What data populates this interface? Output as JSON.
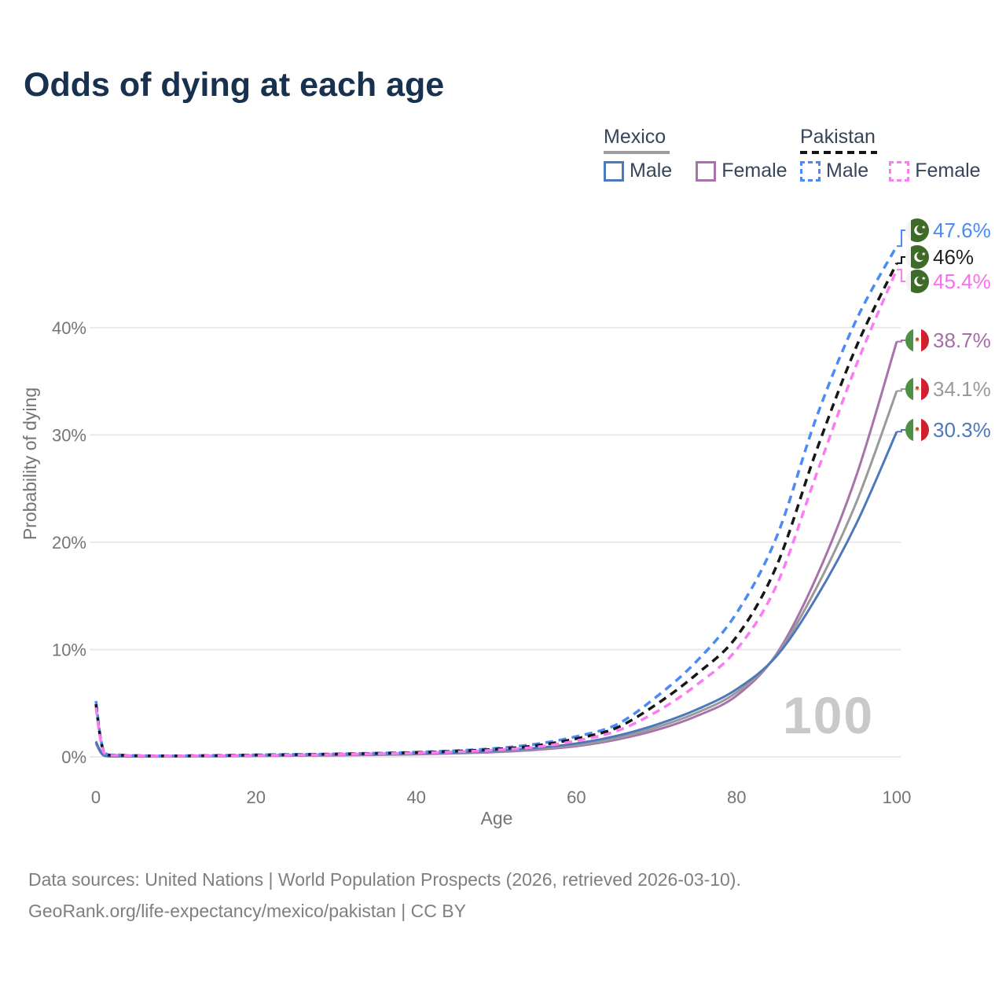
{
  "title": "Odds of dying at each age",
  "watermark_age": "100",
  "legend": {
    "groups": [
      {
        "label": "Mexico",
        "line_style": "solid",
        "underline_color": "#9e9e9e",
        "items": [
          {
            "label": "Male",
            "color": "#4d79bb"
          },
          {
            "label": "Female",
            "color": "#a872ab"
          }
        ]
      },
      {
        "label": "Pakistan",
        "line_style": "dashed",
        "underline_color": "#161616",
        "items": [
          {
            "label": "Male",
            "color": "#4b8bf4"
          },
          {
            "label": "Female",
            "color": "#fb7bf1"
          }
        ]
      }
    ]
  },
  "footer": {
    "line1": "Data sources: United Nations | World Population Prospects (2026, retrieved 2026-03-10).",
    "line2": "GeoRank.org/life-expectancy/mexico/pakistan | CC BY"
  },
  "chart_data": {
    "type": "line",
    "title": "Odds of dying at each age",
    "xlabel": "Age",
    "ylabel": "Probability of dying",
    "xlim": [
      0,
      100
    ],
    "ylim": [
      0,
      48
    ],
    "grid": "horizontal",
    "legend_position": "top-right",
    "x_ticks": [
      0,
      20,
      40,
      60,
      80,
      100
    ],
    "y_ticks": [
      {
        "value": 0,
        "label": "0%"
      },
      {
        "value": 10,
        "label": "10%"
      },
      {
        "value": 20,
        "label": "20%"
      },
      {
        "value": 30,
        "label": "30%"
      },
      {
        "value": 40,
        "label": "40%"
      }
    ],
    "series": [
      {
        "name": "Pakistan Male",
        "country": "Pakistan",
        "sex": "Male",
        "color": "#4b8bf4",
        "dashed": true,
        "end_value": 47.6,
        "end_label": "47.6%",
        "label_color": "#4b8bf4",
        "points": [
          [
            0,
            5.2
          ],
          [
            1,
            0.5
          ],
          [
            3,
            0.18
          ],
          [
            8,
            0.1
          ],
          [
            15,
            0.14
          ],
          [
            20,
            0.19
          ],
          [
            25,
            0.23
          ],
          [
            30,
            0.28
          ],
          [
            35,
            0.35
          ],
          [
            40,
            0.44
          ],
          [
            45,
            0.58
          ],
          [
            50,
            0.8
          ],
          [
            55,
            1.2
          ],
          [
            60,
            1.9
          ],
          [
            65,
            3.0
          ],
          [
            70,
            5.6
          ],
          [
            75,
            8.9
          ],
          [
            80,
            13.4
          ],
          [
            85,
            20.5
          ],
          [
            90,
            31.7
          ],
          [
            95,
            40.8
          ],
          [
            100,
            47.6
          ]
        ]
      },
      {
        "name": "Pakistan Both",
        "country": "Pakistan",
        "sex": "Both",
        "color": "#161616",
        "dashed": true,
        "end_value": 46.0,
        "end_label": "46%",
        "label_color": "#222222",
        "points": [
          [
            0,
            4.9
          ],
          [
            1,
            0.45
          ],
          [
            3,
            0.16
          ],
          [
            8,
            0.09
          ],
          [
            15,
            0.12
          ],
          [
            20,
            0.17
          ],
          [
            25,
            0.21
          ],
          [
            30,
            0.26
          ],
          [
            35,
            0.32
          ],
          [
            40,
            0.4
          ],
          [
            45,
            0.53
          ],
          [
            50,
            0.72
          ],
          [
            55,
            1.05
          ],
          [
            60,
            1.7
          ],
          [
            65,
            2.7
          ],
          [
            70,
            4.9
          ],
          [
            75,
            7.7
          ],
          [
            80,
            11.2
          ],
          [
            85,
            17.8
          ],
          [
            90,
            28.6
          ],
          [
            95,
            38.3
          ],
          [
            100,
            46.0
          ]
        ]
      },
      {
        "name": "Pakistan Female",
        "country": "Pakistan",
        "sex": "Female",
        "color": "#fb7bf1",
        "dashed": true,
        "end_value": 45.4,
        "end_label": "45.4%",
        "label_color": "#fb6ef0",
        "points": [
          [
            0,
            4.6
          ],
          [
            1,
            0.4
          ],
          [
            3,
            0.15
          ],
          [
            8,
            0.08
          ],
          [
            15,
            0.1
          ],
          [
            20,
            0.14
          ],
          [
            25,
            0.18
          ],
          [
            30,
            0.23
          ],
          [
            35,
            0.29
          ],
          [
            40,
            0.36
          ],
          [
            45,
            0.47
          ],
          [
            50,
            0.64
          ],
          [
            55,
            0.92
          ],
          [
            60,
            1.5
          ],
          [
            65,
            2.4
          ],
          [
            70,
            4.2
          ],
          [
            75,
            6.7
          ],
          [
            80,
            10.0
          ],
          [
            85,
            16.0
          ],
          [
            90,
            26.4
          ],
          [
            95,
            36.6
          ],
          [
            100,
            45.4
          ]
        ]
      },
      {
        "name": "Mexico Female",
        "country": "Mexico",
        "sex": "Female",
        "color": "#a872ab",
        "dashed": false,
        "end_value": 38.7,
        "end_label": "38.7%",
        "label_color": "#a46fa6",
        "points": [
          [
            0,
            1.25
          ],
          [
            1,
            0.11
          ],
          [
            3,
            0.04
          ],
          [
            8,
            0.03
          ],
          [
            15,
            0.05
          ],
          [
            20,
            0.08
          ],
          [
            25,
            0.11
          ],
          [
            30,
            0.14
          ],
          [
            35,
            0.18
          ],
          [
            40,
            0.24
          ],
          [
            45,
            0.33
          ],
          [
            50,
            0.45
          ],
          [
            55,
            0.66
          ],
          [
            60,
            1.0
          ],
          [
            65,
            1.6
          ],
          [
            70,
            2.5
          ],
          [
            75,
            3.8
          ],
          [
            80,
            5.7
          ],
          [
            85,
            9.6
          ],
          [
            90,
            16.8
          ],
          [
            95,
            26.3
          ],
          [
            100,
            38.7
          ]
        ]
      },
      {
        "name": "Mexico Both",
        "country": "Mexico",
        "sex": "Both",
        "color": "#9a9a9a",
        "dashed": false,
        "end_value": 34.1,
        "end_label": "34.1%",
        "label_color": "#9a9a9a",
        "points": [
          [
            0,
            1.35
          ],
          [
            1,
            0.13
          ],
          [
            3,
            0.05
          ],
          [
            8,
            0.04
          ],
          [
            15,
            0.07
          ],
          [
            20,
            0.11
          ],
          [
            25,
            0.15
          ],
          [
            30,
            0.18
          ],
          [
            35,
            0.23
          ],
          [
            40,
            0.29
          ],
          [
            45,
            0.38
          ],
          [
            50,
            0.51
          ],
          [
            55,
            0.75
          ],
          [
            60,
            1.1
          ],
          [
            65,
            1.75
          ],
          [
            70,
            2.75
          ],
          [
            75,
            4.1
          ],
          [
            80,
            6.0
          ],
          [
            85,
            9.5
          ],
          [
            90,
            15.8
          ],
          [
            95,
            23.8
          ],
          [
            100,
            34.1
          ]
        ]
      },
      {
        "name": "Mexico Male",
        "country": "Mexico",
        "sex": "Male",
        "color": "#4d79bb",
        "dashed": false,
        "end_value": 30.3,
        "end_label": "30.3%",
        "label_color": "#4d79bb",
        "points": [
          [
            0,
            1.45
          ],
          [
            1,
            0.15
          ],
          [
            3,
            0.06
          ],
          [
            8,
            0.05
          ],
          [
            15,
            0.09
          ],
          [
            20,
            0.14
          ],
          [
            25,
            0.18
          ],
          [
            30,
            0.22
          ],
          [
            35,
            0.27
          ],
          [
            40,
            0.33
          ],
          [
            45,
            0.42
          ],
          [
            50,
            0.57
          ],
          [
            55,
            0.83
          ],
          [
            60,
            1.25
          ],
          [
            65,
            1.95
          ],
          [
            70,
            3.0
          ],
          [
            75,
            4.4
          ],
          [
            80,
            6.3
          ],
          [
            85,
            9.4
          ],
          [
            90,
            14.9
          ],
          [
            95,
            21.8
          ],
          [
            100,
            30.3
          ]
        ]
      }
    ]
  }
}
